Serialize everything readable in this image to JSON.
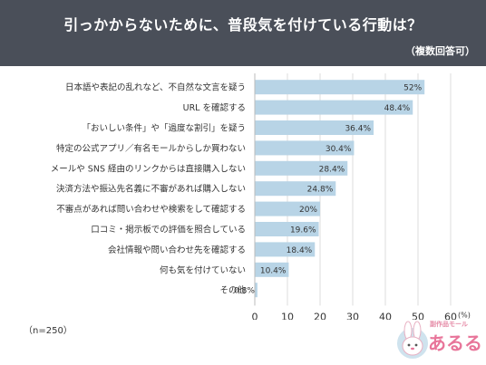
{
  "header": {
    "title": "引っかからないために、普段気を付けている行動は？",
    "subtitle": "（複数回答可）"
  },
  "footnote": "（n=250）",
  "logo": {
    "small_text": "副作品モール",
    "main_text": "あるる"
  },
  "colors": {
    "header_bg": "#4a4f59",
    "bar": "#b8d4e6",
    "grid": "#dcdcdc"
  },
  "chart_data": {
    "type": "bar",
    "orientation": "horizontal",
    "categories": [
      "日本語や表記の乱れなど、不自然な文言を疑う",
      "URL を確認する",
      "「おいしい条件」や「過度な割引」を疑う",
      "特定の公式アプリ／有名モールからしか買わない",
      "メールや SNS 経由のリンクからは直接購入しない",
      "決済方法や振込先名義に不審があれば購入しない",
      "不審点があれば問い合わせや検索をして確認する",
      "口コミ・掲示板での評価を照合している",
      "会社情報や問い合わせ先を確認する",
      "何も気を付けていない",
      "その他"
    ],
    "values": [
      52,
      48.4,
      36.4,
      30.4,
      28.4,
      24.8,
      20,
      19.6,
      18.4,
      10.4,
      0.8
    ],
    "value_labels": [
      "52%",
      "48.4%",
      "36.4%",
      "30.4%",
      "28.4%",
      "24.8%",
      "20%",
      "19.6%",
      "18.4%",
      "10.4%",
      "0.8%"
    ],
    "x_ticks": [
      "0",
      "10",
      "20",
      "30",
      "40",
      "50",
      "60"
    ],
    "x_unit": "(%)",
    "xlim": [
      0,
      60
    ],
    "grid": true
  }
}
